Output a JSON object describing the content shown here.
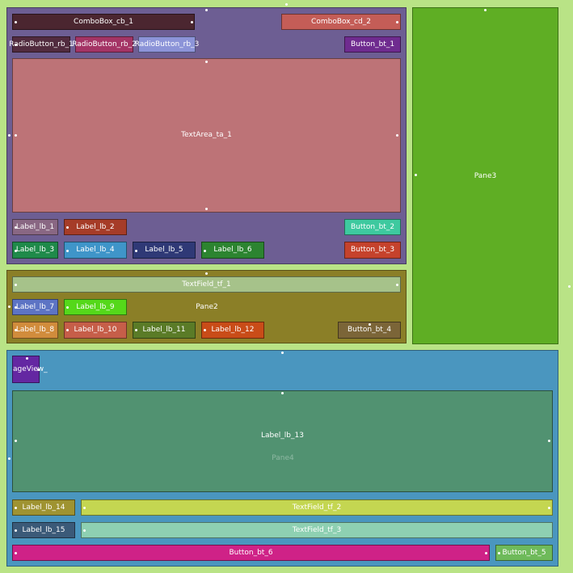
{
  "colors": {
    "background": "#b9e386",
    "pane1": "#6d5e93",
    "pane2": "#8b7f27",
    "pane3": "#5fae24",
    "pane4": "#4a96bf"
  },
  "pane1": {
    "combo_cb_1": "ComboBox_cb_1",
    "combo_cd_2": "ComboBox_cd_2",
    "radio_rb_1": "RadioButton_rb_1",
    "radio_rb_2": "RadioButton_rb_2",
    "radio_rb_3": "RadioButton_rb_3",
    "button_bt_1": "Button_bt_1",
    "textarea_ta_1": "TextArea_ta_1",
    "label_lb_1": "Label_lb_1",
    "label_lb_2": "Label_lb_2",
    "button_bt_2": "Button_bt_2",
    "label_lb_3": "Label_lb_3",
    "label_lb_4": "Label_lb_4",
    "label_lb_5": "Label_lb_5",
    "label_lb_6": "Label_lb_6",
    "button_bt_3": "Button_bt_3"
  },
  "pane2": {
    "title": "Pane2",
    "textfield_tf_1": "TextField_tf_1",
    "label_lb_7": "Label_lb_7",
    "label_lb_9": "Label_lb_9",
    "label_lb_8": "Label_lb_8",
    "label_lb_10": "Label_lb_10",
    "label_lb_11": "Label_lb_11",
    "label_lb_12": "Label_lb_12",
    "button_bt_4": "Button_bt_4"
  },
  "pane3": {
    "title": "Pane3"
  },
  "pane4": {
    "title": "Pane4",
    "imageview": "ageView_",
    "label_lb_13": "Label_lb_13",
    "label_lb_14": "Label_lb_14",
    "textfield_tf_2": "TextField_tf_2",
    "label_lb_15": "Label_lb_15",
    "textfield_tf_3": "TextField_tf_3",
    "button_bt_6": "Button_bt_6",
    "button_bt_5": "Button_bt_5"
  }
}
